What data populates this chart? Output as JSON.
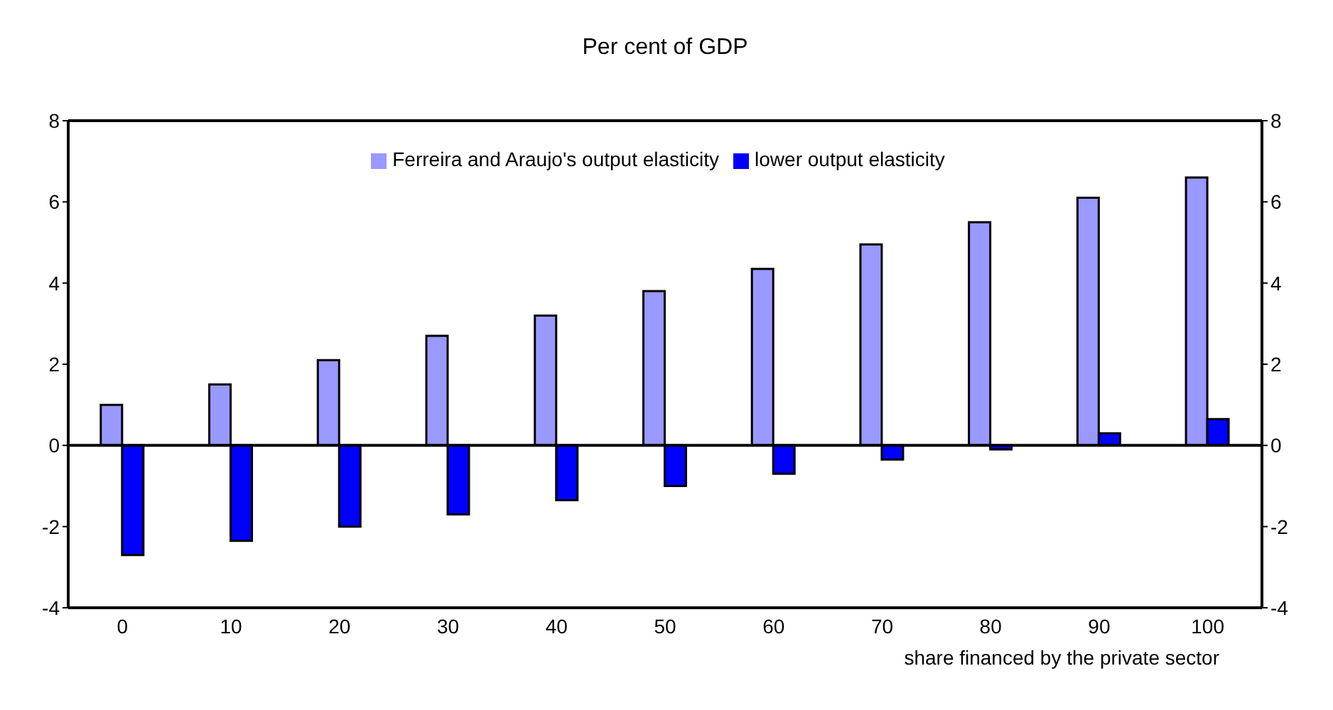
{
  "chart_data": {
    "type": "bar",
    "title": "Per cent of GDP",
    "xlabel": "share financed  by the private sector",
    "categories": [
      "0",
      "10",
      "20",
      "30",
      "40",
      "50",
      "60",
      "70",
      "80",
      "90",
      "100"
    ],
    "series": [
      {
        "name": "Ferreira and Araujo's output elasticity",
        "color": "#9999ff",
        "values": [
          1.0,
          1.5,
          2.1,
          2.7,
          3.2,
          3.8,
          4.35,
          4.95,
          5.5,
          6.1,
          6.6
        ]
      },
      {
        "name": "lower output elasticity",
        "color": "#0000ff",
        "values": [
          -2.7,
          -2.35,
          -2.0,
          -1.7,
          -1.35,
          -1.0,
          -0.7,
          -0.35,
          -0.1,
          0.3,
          0.65
        ]
      }
    ],
    "ylim": [
      -4,
      8
    ],
    "yticks": [
      -4,
      -2,
      0,
      2,
      4,
      6,
      8
    ],
    "y2lim": [
      -4,
      8
    ],
    "y2ticks": [
      -4,
      -2,
      0,
      2,
      4,
      6,
      8
    ],
    "legend": "top"
  }
}
